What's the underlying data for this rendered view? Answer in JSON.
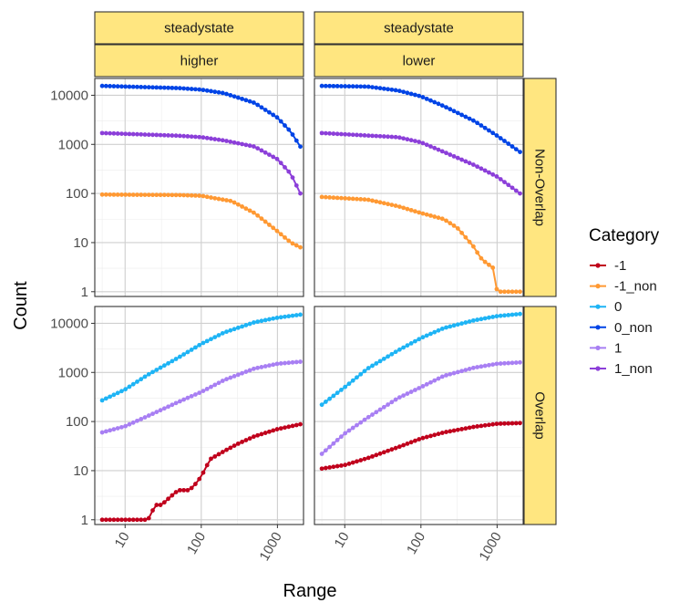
{
  "chart_data": {
    "type": "line",
    "x_scale": "log",
    "y_scale": "log",
    "xlabel": "Range",
    "ylabel": "Count",
    "x_ticks": [
      "10",
      "100",
      "1000"
    ],
    "y_ticks": [
      "1",
      "10",
      "100",
      "1000",
      "10000"
    ],
    "xlim": [
      4,
      2200
    ],
    "ylim": [
      0.8,
      22000
    ],
    "legend": {
      "title": "Category",
      "position": "right",
      "entries": [
        {
          "label": "-1",
          "color": "#c0001c"
        },
        {
          "label": "-1_non",
          "color": "#ff9933"
        },
        {
          "label": "0",
          "color": "#1eb4f5"
        },
        {
          "label": "0_non",
          "color": "#0044e6"
        },
        {
          "label": "1",
          "color": "#a87ff3"
        },
        {
          "label": "1_non",
          "color": "#8c3fd9"
        }
      ]
    },
    "col_strips": [
      [
        "steadystate",
        "higher"
      ],
      [
        "steadystate",
        "lower"
      ]
    ],
    "row_strips": [
      "Non-Overlap",
      "Overlap"
    ],
    "panels": [
      {
        "col": 0,
        "row": 0,
        "series": [
          {
            "category": "0_non",
            "anchors": [
              [
                5,
                15500
              ],
              [
                50,
                14000
              ],
              [
                100,
                13000
              ],
              [
                200,
                11000
              ],
              [
                500,
                7000
              ],
              [
                1000,
                3500
              ],
              [
                1500,
                1800
              ],
              [
                2000,
                900
              ]
            ]
          },
          {
            "category": "1_non",
            "anchors": [
              [
                5,
                1700
              ],
              [
                50,
                1500
              ],
              [
                100,
                1400
              ],
              [
                200,
                1200
              ],
              [
                500,
                900
              ],
              [
                1000,
                500
              ],
              [
                1500,
                250
              ],
              [
                2000,
                100
              ]
            ]
          },
          {
            "category": "-1_non",
            "anchors": [
              [
                5,
                95
              ],
              [
                50,
                93
              ],
              [
                100,
                90
              ],
              [
                150,
                80
              ],
              [
                250,
                70
              ],
              [
                500,
                40
              ],
              [
                1000,
                17
              ],
              [
                1500,
                10
              ],
              [
                2000,
                8
              ]
            ]
          }
        ]
      },
      {
        "col": 1,
        "row": 0,
        "series": [
          {
            "category": "0_non",
            "anchors": [
              [
                5,
                15500
              ],
              [
                20,
                15000
              ],
              [
                50,
                12500
              ],
              [
                100,
                9500
              ],
              [
                200,
                6000
              ],
              [
                500,
                3000
              ],
              [
                1000,
                1500
              ],
              [
                2000,
                700
              ]
            ]
          },
          {
            "category": "1_non",
            "anchors": [
              [
                5,
                1700
              ],
              [
                50,
                1400
              ],
              [
                100,
                1100
              ],
              [
                200,
                700
              ],
              [
                500,
                380
              ],
              [
                1000,
                220
              ],
              [
                2000,
                100
              ]
            ]
          },
          {
            "category": "-1_non",
            "anchors": [
              [
                5,
                85
              ],
              [
                20,
                75
              ],
              [
                50,
                55
              ],
              [
                100,
                40
              ],
              [
                200,
                30
              ],
              [
                300,
                20
              ],
              [
                400,
                12
              ],
              [
                500,
                8
              ],
              [
                600,
                5
              ],
              [
                700,
                4
              ],
              [
                900,
                3
              ],
              [
                1000,
                1
              ],
              [
                2000,
                1
              ]
            ]
          }
        ]
      },
      {
        "col": 0,
        "row": 1,
        "series": [
          {
            "category": "0",
            "anchors": [
              [
                5,
                270
              ],
              [
                10,
                450
              ],
              [
                20,
                900
              ],
              [
                50,
                2000
              ],
              [
                100,
                3800
              ],
              [
                200,
                6500
              ],
              [
                500,
                10500
              ],
              [
                1000,
                13000
              ],
              [
                2000,
                15000
              ]
            ]
          },
          {
            "category": "1",
            "anchors": [
              [
                5,
                60
              ],
              [
                10,
                80
              ],
              [
                20,
                130
              ],
              [
                50,
                250
              ],
              [
                100,
                400
              ],
              [
                200,
                700
              ],
              [
                500,
                1200
              ],
              [
                1000,
                1500
              ],
              [
                2000,
                1650
              ]
            ]
          },
          {
            "category": "-1",
            "anchors": [
              [
                5,
                1
              ],
              [
                15,
                1
              ],
              [
                20,
                1
              ],
              [
                25,
                2
              ],
              [
                30,
                2
              ],
              [
                40,
                3
              ],
              [
                50,
                4
              ],
              [
                70,
                4
              ],
              [
                90,
                6
              ],
              [
                110,
                10
              ],
              [
                130,
                17
              ],
              [
                200,
                25
              ],
              [
                300,
                35
              ],
              [
                500,
                50
              ],
              [
                1000,
                70
              ],
              [
                2000,
                88
              ]
            ]
          }
        ]
      },
      {
        "col": 1,
        "row": 1,
        "series": [
          {
            "category": "0",
            "anchors": [
              [
                5,
                220
              ],
              [
                10,
                500
              ],
              [
                20,
                1200
              ],
              [
                50,
                2800
              ],
              [
                100,
                5000
              ],
              [
                200,
                8000
              ],
              [
                500,
                11500
              ],
              [
                1000,
                14000
              ],
              [
                2000,
                15500
              ]
            ]
          },
          {
            "category": "1",
            "anchors": [
              [
                5,
                22
              ],
              [
                10,
                57
              ],
              [
                20,
                120
              ],
              [
                50,
                300
              ],
              [
                100,
                500
              ],
              [
                200,
                850
              ],
              [
                500,
                1250
              ],
              [
                1000,
                1500
              ],
              [
                2000,
                1600
              ]
            ]
          },
          {
            "category": "-1",
            "anchors": [
              [
                5,
                11
              ],
              [
                10,
                13
              ],
              [
                20,
                18
              ],
              [
                50,
                30
              ],
              [
                100,
                45
              ],
              [
                200,
                60
              ],
              [
                500,
                78
              ],
              [
                1000,
                90
              ],
              [
                2000,
                93
              ]
            ]
          }
        ]
      }
    ]
  }
}
